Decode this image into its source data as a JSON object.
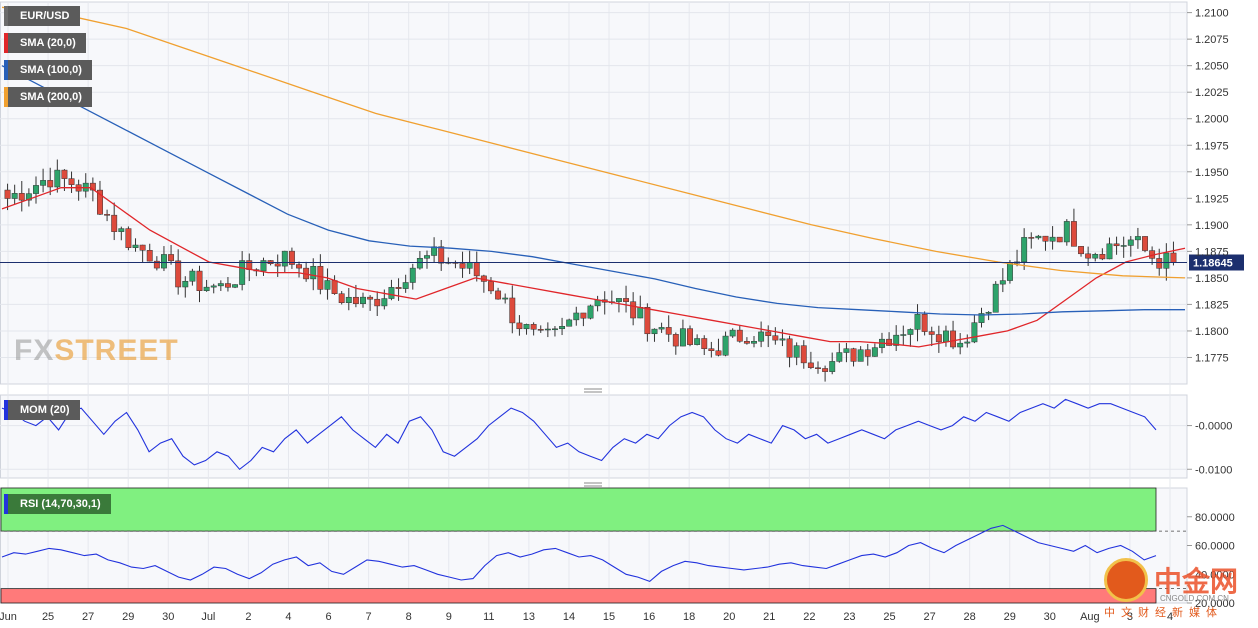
{
  "legends": {
    "symbol": {
      "label": "EUR/USD",
      "color": "#6b6b6b"
    },
    "sma20": {
      "label": "SMA (20,0)",
      "color": "#e0262a"
    },
    "sma100": {
      "label": "SMA (100,0)",
      "color": "#2860b8"
    },
    "sma200": {
      "label": "SMA (200,0)",
      "color": "#f0a030"
    },
    "mom": {
      "label": "MOM (20)",
      "color": "#2233dd"
    },
    "rsi": {
      "label": "RSI (14,70,30,1)",
      "color": "#2233dd"
    }
  },
  "watermark": {
    "part1": "FX",
    "part2": "STREET"
  },
  "logo": {
    "brand": "中金网",
    "domain": "CNGOLD.COM.CN",
    "sub": "中文财经新媒体"
  },
  "colors": {
    "bull": "#2ea36b",
    "bear": "#dd4a3c",
    "rsi_overbought": "#80f080",
    "rsi_oversold": "#ff7a7a",
    "price_line": "#1c2f6e"
  },
  "chart_data": [
    {
      "type": "candlestick",
      "title": "EUR/USD",
      "ylim": [
        1.175,
        1.211
      ],
      "yticks": [
        "1.2100",
        "1.2075",
        "1.2050",
        "1.2025",
        "1.2000",
        "1.1975",
        "1.1950",
        "1.1925",
        "1.1900",
        "1.1875",
        "1.1850",
        "1.1825",
        "1.1800",
        "1.1775"
      ],
      "last_price": 1.18645,
      "last_price_label": "1.18645",
      "x_labels": [
        "Jun",
        "25",
        "27",
        "29",
        "30",
        "Jul",
        "2",
        "4",
        "6",
        "7",
        "8",
        "9",
        "11",
        "13",
        "14",
        "15",
        "16",
        "18",
        "20",
        "21",
        "22",
        "23",
        "25",
        "27",
        "28",
        "29",
        "30",
        "Aug",
        "3",
        "4"
      ],
      "grid": true,
      "ohlc_anchor_closes": [
        1.1925,
        1.1935,
        1.1945,
        1.194,
        1.193,
        1.19,
        1.188,
        1.187,
        1.185,
        1.1845,
        1.184,
        1.1855,
        1.1865,
        1.187,
        1.186,
        1.184,
        1.183,
        1.1825,
        1.184,
        1.186,
        1.187,
        1.1865,
        1.1855,
        1.184,
        1.181,
        1.179,
        1.1795,
        1.182,
        1.1835,
        1.1825,
        1.181,
        1.18,
        1.179,
        1.178,
        1.179,
        1.18,
        1.179,
        1.178,
        1.1775,
        1.177,
        1.178,
        1.179,
        1.18,
        1.181,
        1.18,
        1.179,
        1.182,
        1.185,
        1.188,
        1.189,
        1.1895,
        1.1875,
        1.188,
        1.1885,
        1.187,
        1.1862
      ],
      "series": [
        {
          "name": "SMA (20,0)",
          "values": [
            1.1915,
            1.1925,
            1.1935,
            1.1935,
            1.1915,
            1.1895,
            1.188,
            1.1865,
            1.186,
            1.1855,
            1.1855,
            1.185,
            1.184,
            1.1835,
            1.183,
            1.184,
            1.185,
            1.1845,
            1.184,
            1.1835,
            1.183,
            1.1825,
            1.182,
            1.1815,
            1.181,
            1.1805,
            1.18,
            1.1795,
            1.179,
            1.179,
            1.1788,
            1.1785,
            1.179,
            1.1795,
            1.18,
            1.181,
            1.183,
            1.185,
            1.1865,
            1.1872,
            1.1878
          ]
        },
        {
          "name": "SMA (100,0)",
          "values": [
            1.205,
            1.203,
            1.201,
            1.199,
            1.197,
            1.195,
            1.193,
            1.191,
            1.1895,
            1.1885,
            1.188,
            1.1878,
            1.1875,
            1.187,
            1.1863,
            1.1856,
            1.1849,
            1.184,
            1.1832,
            1.1826,
            1.1822,
            1.182,
            1.1818,
            1.1816,
            1.1815,
            1.1816,
            1.1818,
            1.1819,
            1.182,
            1.182
          ]
        },
        {
          "name": "SMA (200,0)",
          "values": [
            1.2105,
            1.2098,
            1.2085,
            1.2065,
            1.2045,
            1.2025,
            1.2005,
            1.199,
            1.1975,
            1.196,
            1.1945,
            1.193,
            1.1915,
            1.19,
            1.1887,
            1.1875,
            1.1865,
            1.1857,
            1.1852,
            1.185
          ]
        }
      ]
    },
    {
      "type": "line",
      "title": "MOM (20)",
      "ylim": [
        -0.012,
        0.007
      ],
      "yticks": [
        "-0.0000",
        "-0.0100"
      ],
      "series": [
        {
          "name": "MOM (20)",
          "values": [
            0.004,
            0.003,
            0.001,
            0.0,
            0.002,
            -0.001,
            0.003,
            0.004,
            0.001,
            -0.002,
            0.001,
            0.003,
            -0.001,
            -0.006,
            -0.004,
            -0.003,
            -0.007,
            -0.009,
            -0.008,
            -0.006,
            -0.007,
            -0.01,
            -0.008,
            -0.005,
            -0.006,
            -0.003,
            -0.001,
            -0.004,
            -0.002,
            0.0,
            0.002,
            -0.001,
            -0.003,
            -0.005,
            -0.002,
            -0.004,
            0.001,
            0.002,
            -0.001,
            -0.006,
            -0.007,
            -0.005,
            -0.003,
            0.0,
            0.002,
            0.004,
            0.003,
            0.001,
            -0.002,
            -0.005,
            -0.004,
            -0.006,
            -0.007,
            -0.008,
            -0.005,
            -0.003,
            -0.004,
            -0.002,
            -0.003,
            0.0,
            0.002,
            0.003,
            0.002,
            -0.001,
            -0.003,
            -0.004,
            -0.002,
            -0.003,
            -0.004,
            0.0,
            -0.001,
            -0.003,
            -0.002,
            -0.004,
            -0.003,
            -0.002,
            -0.001,
            -0.002,
            -0.003,
            -0.001,
            0.0,
            0.001,
            0.0,
            -0.001,
            0.0,
            0.002,
            0.001,
            0.003,
            0.002,
            0.001,
            0.003,
            0.004,
            0.005,
            0.004,
            0.006,
            0.005,
            0.004,
            0.005,
            0.005,
            0.004,
            0.003,
            0.002,
            -0.001
          ]
        }
      ]
    },
    {
      "type": "line",
      "title": "RSI (14,70,30,1)",
      "ylim": [
        20,
        100
      ],
      "yticks": [
        "80.0000",
        "60.0000",
        "40.0000",
        "20.0000"
      ],
      "overbought": 70,
      "oversold": 30,
      "series": [
        {
          "name": "RSI (14,70,30,1)",
          "values": [
            52,
            55,
            54,
            56,
            58,
            57,
            55,
            53,
            54,
            50,
            48,
            45,
            44,
            46,
            42,
            38,
            36,
            40,
            45,
            44,
            40,
            37,
            41,
            47,
            50,
            52,
            46,
            48,
            42,
            40,
            45,
            50,
            49,
            47,
            45,
            46,
            43,
            40,
            38,
            36,
            37,
            46,
            53,
            55,
            52,
            54,
            57,
            58,
            55,
            52,
            53,
            50,
            45,
            40,
            38,
            35,
            42,
            46,
            49,
            48,
            46,
            45,
            44,
            43,
            44,
            45,
            47,
            48,
            46,
            45,
            44,
            47,
            50,
            53,
            54,
            52,
            55,
            60,
            62,
            58,
            55,
            60,
            64,
            68,
            72,
            74,
            70,
            66,
            62,
            60,
            58,
            56,
            60,
            55,
            58,
            60,
            56,
            50,
            53
          ]
        }
      ]
    }
  ]
}
